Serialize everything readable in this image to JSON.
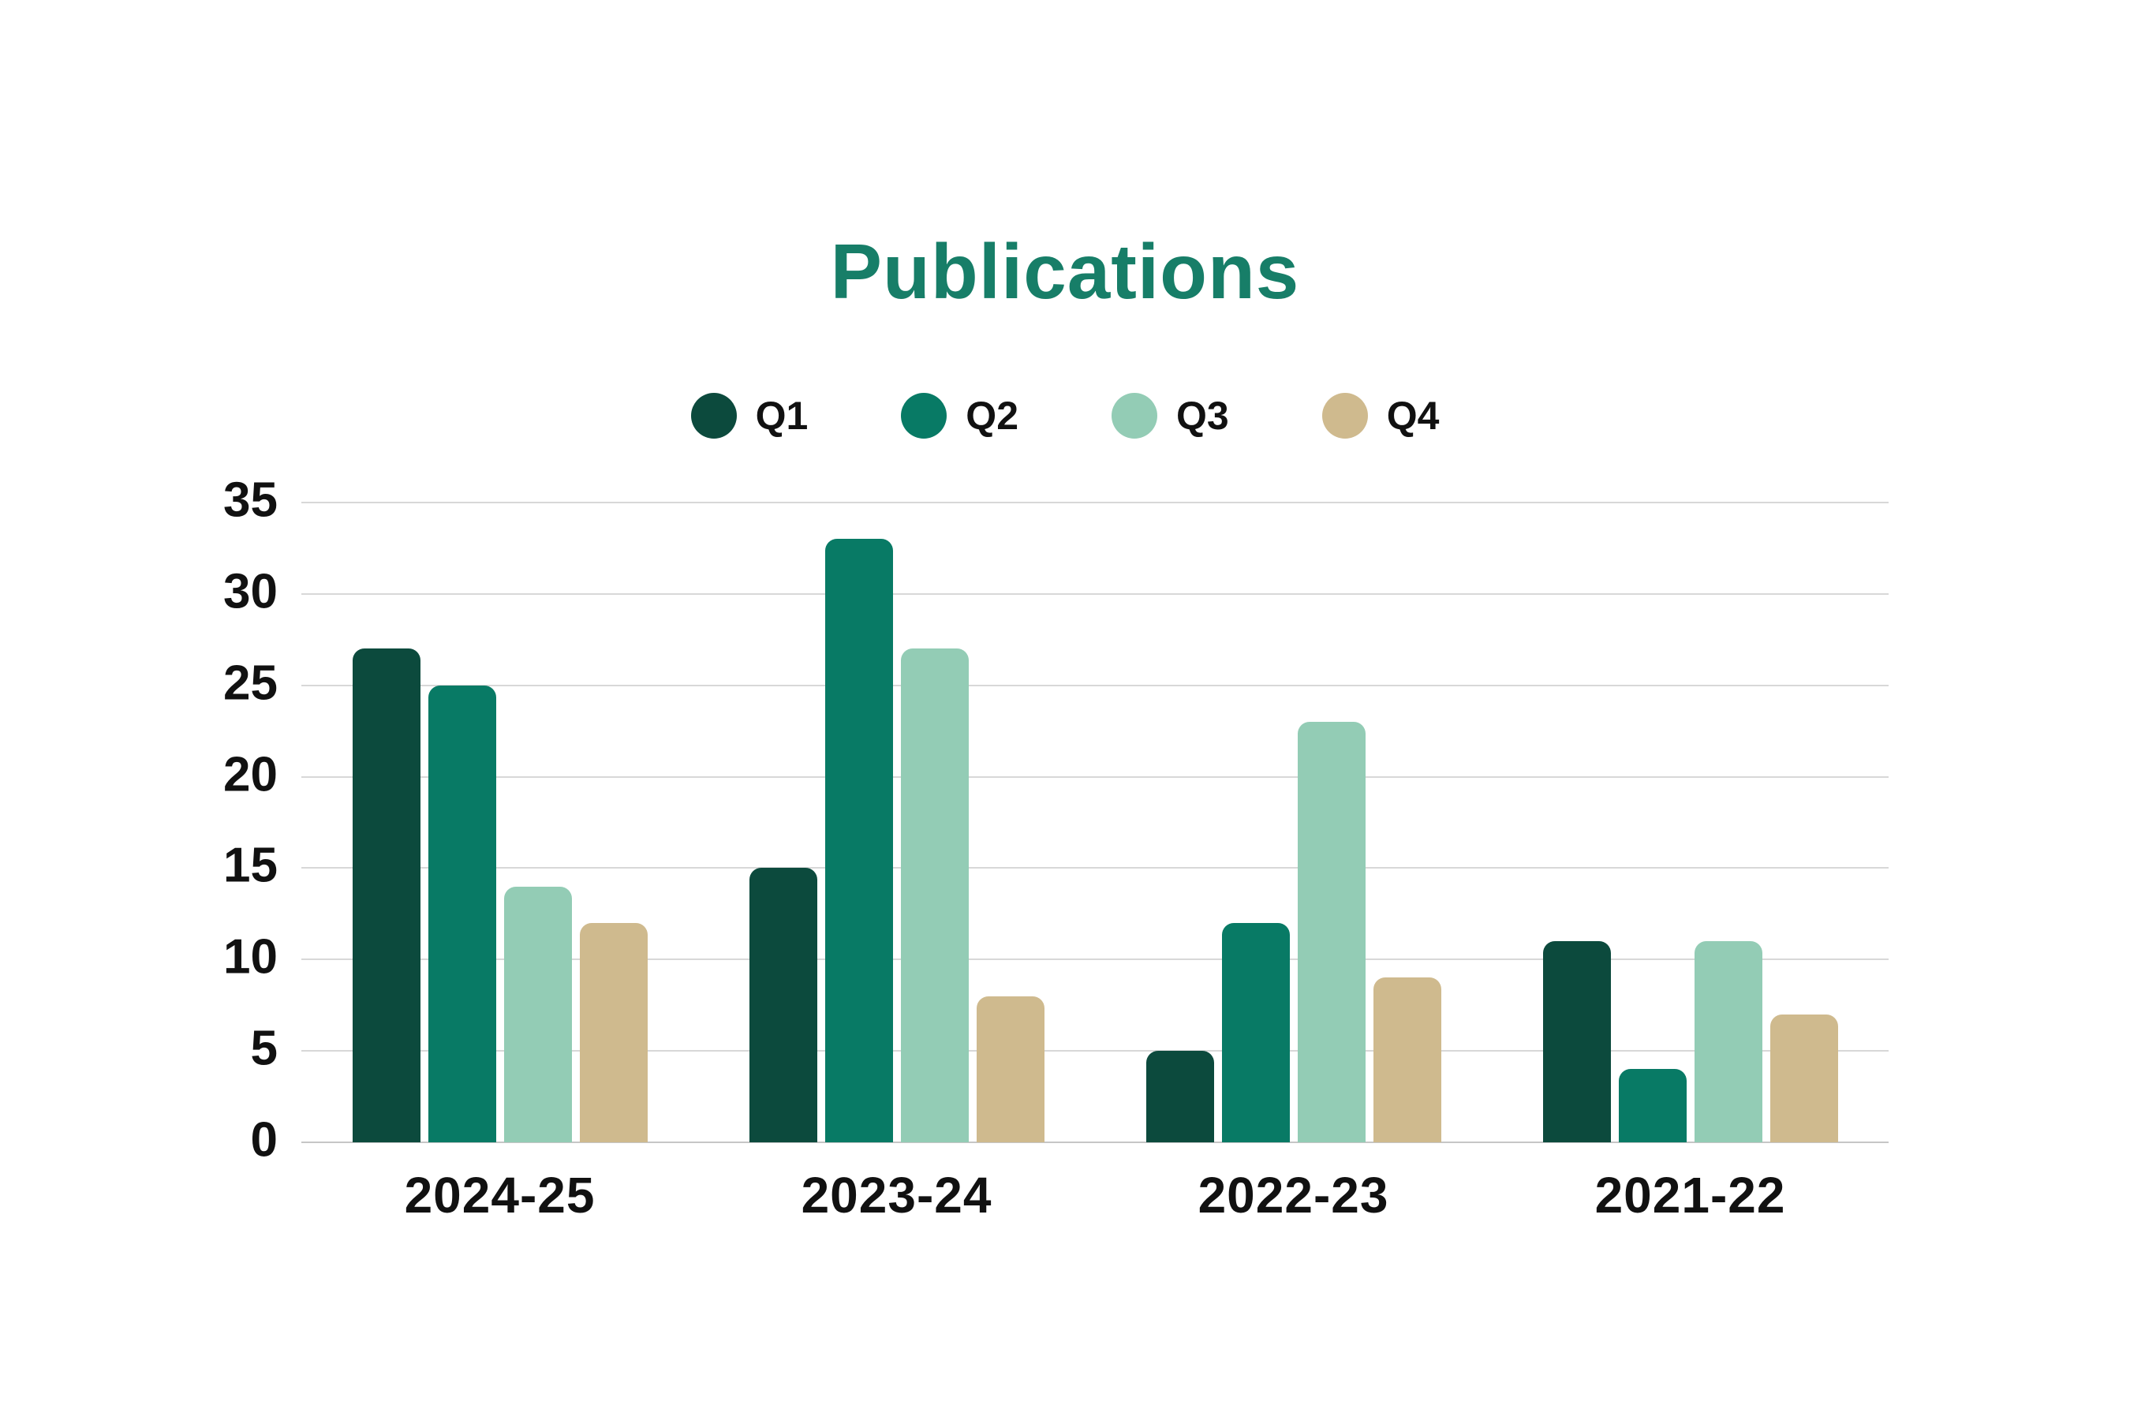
{
  "chart_data": {
    "type": "bar",
    "title": "Publications",
    "title_color": "#177e68",
    "categories": [
      "2024-25",
      "2023-24",
      "2022-23",
      "2021-22"
    ],
    "series": [
      {
        "name": "Q1",
        "color": "#0c4a3d",
        "values": [
          27,
          15,
          5,
          11
        ]
      },
      {
        "name": "Q2",
        "color": "#087a65",
        "values": [
          25,
          33,
          12,
          4
        ]
      },
      {
        "name": "Q3",
        "color": "#93ccb5",
        "values": [
          14,
          27,
          23,
          11
        ]
      },
      {
        "name": "Q4",
        "color": "#cfba8e",
        "values": [
          12,
          8,
          9,
          7
        ]
      }
    ],
    "xlabel": "",
    "ylabel": "",
    "ylim": [
      0,
      35
    ],
    "yticks": [
      35,
      30,
      25,
      20,
      15,
      10,
      5,
      0
    ],
    "grid": true,
    "gridline_color": "#d8d8d8",
    "baseline_color": "#c6c6c6",
    "legend_position": "top",
    "background": "#ffffff",
    "text_color": "#111111"
  }
}
